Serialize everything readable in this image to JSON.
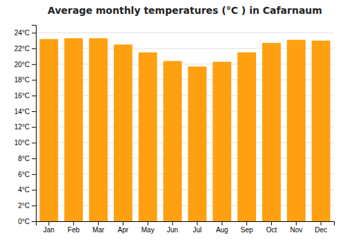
{
  "chart_data": {
    "type": "bar",
    "title": "Average monthly temperatures (°C ) in Cafarnaum",
    "categories": [
      "Jan",
      "Feb",
      "Mar",
      "Apr",
      "May",
      "Jun",
      "Jul",
      "Aug",
      "Sep",
      "Oct",
      "Nov",
      "Dec"
    ],
    "values": [
      23.2,
      23.3,
      23.3,
      22.5,
      21.5,
      20.4,
      19.7,
      20.3,
      21.5,
      22.7,
      23.1,
      23.0
    ],
    "color": "#FFA010",
    "ylim": [
      0,
      25
    ],
    "yticks": [
      {
        "value": 0,
        "label": "0°C"
      },
      {
        "value": 2,
        "label": "2°C"
      },
      {
        "value": 4,
        "label": "4°C"
      },
      {
        "value": 6,
        "label": "6°C"
      },
      {
        "value": 8,
        "label": "8°C"
      },
      {
        "value": 10,
        "label": "10°C"
      },
      {
        "value": 12,
        "label": "12°C"
      },
      {
        "value": 14,
        "label": "14°C"
      },
      {
        "value": 16,
        "label": "16°C"
      },
      {
        "value": 18,
        "label": "18°C"
      },
      {
        "value": 20,
        "label": "20°C"
      },
      {
        "value": 22,
        "label": "22°C"
      },
      {
        "value": 24,
        "label": "24°C"
      }
    ],
    "grid": true
  }
}
